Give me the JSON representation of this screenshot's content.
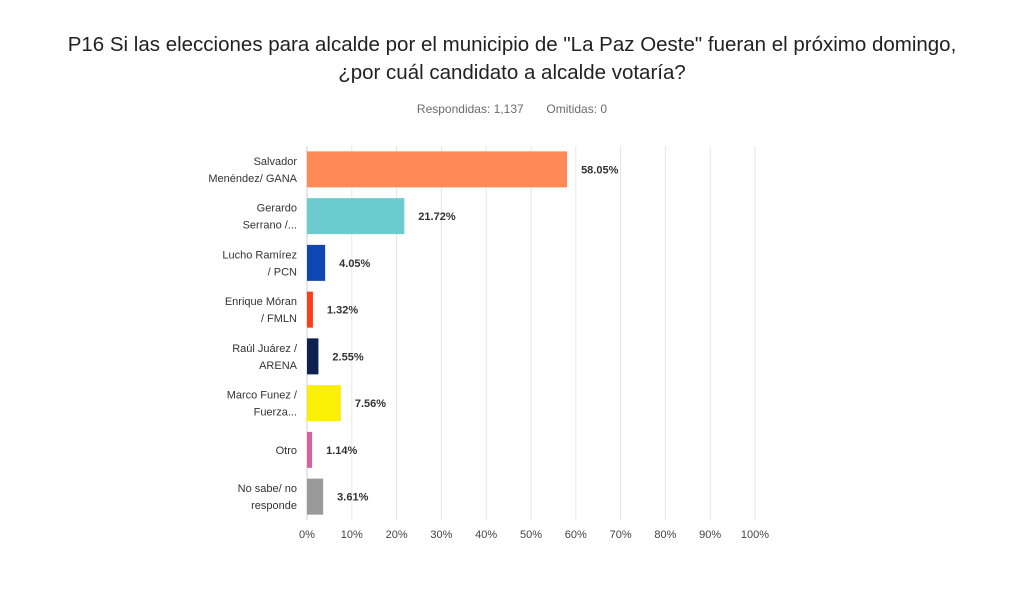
{
  "title_lines": [
    "P16 Si las elecciones para alcalde por el municipio de \"La Paz Oeste\" fueran el próximo domingo,",
    "¿por cuál candidato a alcalde votaría?"
  ],
  "stats": {
    "answered_label": "Respondidas:",
    "answered_value": "1,137",
    "skipped_label": "Omitidas:",
    "skipped_value": "0"
  },
  "chart_data": {
    "type": "bar",
    "orientation": "horizontal",
    "categories": [
      [
        "Salvador",
        "Menéndez/ GANA"
      ],
      [
        "Gerardo",
        "Serrano /..."
      ],
      [
        "Lucho Ramírez",
        "/ PCN"
      ],
      [
        "Enrique Móran",
        "/ FMLN"
      ],
      [
        "Raúl Juárez /",
        "ARENA"
      ],
      [
        "Marco Funez /",
        "Fuerza..."
      ],
      [
        "Otro"
      ],
      [
        "No sabe/ no",
        "responde"
      ]
    ],
    "values": [
      58.05,
      21.72,
      4.05,
      1.32,
      2.55,
      7.56,
      1.14,
      3.61
    ],
    "value_labels": [
      "58.05%",
      "21.72%",
      "4.05%",
      "1.32%",
      "2.55%",
      "7.56%",
      "1.14%",
      "3.61%"
    ],
    "colors": [
      "#ff8a55",
      "#6ccbcf",
      "#0d47b1",
      "#ff3d17",
      "#0c214f",
      "#fbef08",
      "#d4639e",
      "#999999"
    ],
    "xlim": [
      0,
      100
    ],
    "xticks": [
      "0%",
      "10%",
      "20%",
      "30%",
      "40%",
      "50%",
      "60%",
      "70%",
      "80%",
      "90%",
      "100%"
    ],
    "grid": true
  }
}
